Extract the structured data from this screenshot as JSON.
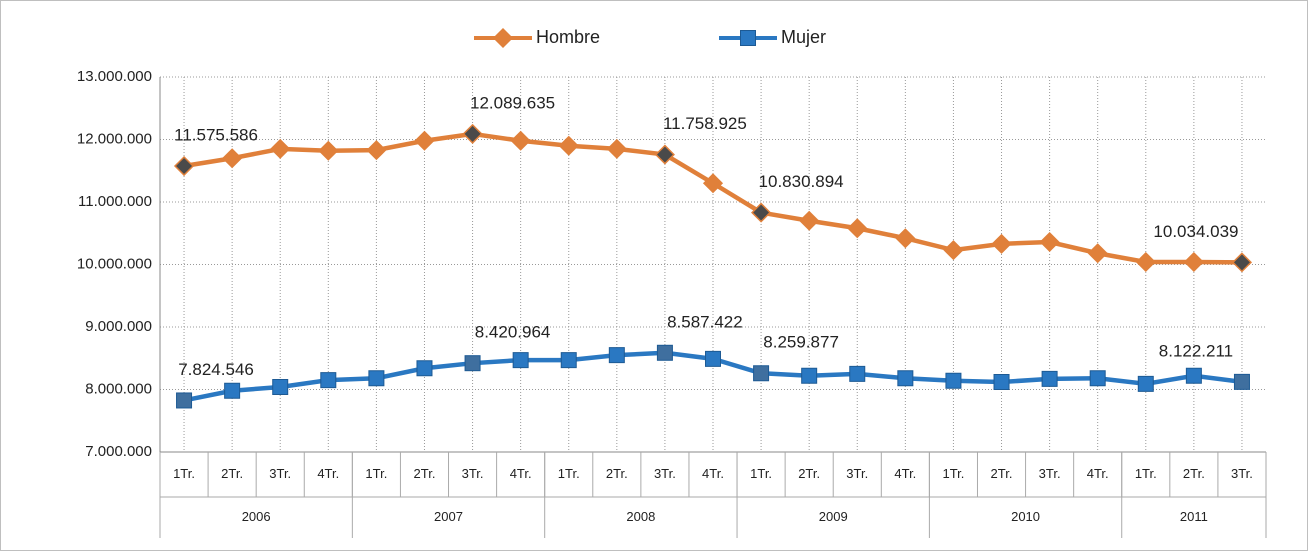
{
  "chart_data": {
    "type": "line",
    "year_groups": [
      {
        "name": "2006",
        "quarters": [
          "1Tr.",
          "2Tr.",
          "3Tr.",
          "4Tr."
        ]
      },
      {
        "name": "2007",
        "quarters": [
          "1Tr.",
          "2Tr.",
          "3Tr.",
          "4Tr."
        ]
      },
      {
        "name": "2008",
        "quarters": [
          "1Tr.",
          "2Tr.",
          "3Tr.",
          "4Tr."
        ]
      },
      {
        "name": "2009",
        "quarters": [
          "1Tr.",
          "2Tr.",
          "3Tr.",
          "4Tr."
        ]
      },
      {
        "name": "2010",
        "quarters": [
          "1Tr.",
          "2Tr.",
          "3Tr.",
          "4Tr."
        ]
      },
      {
        "name": "2011",
        "quarters": [
          "1Tr.",
          "2Tr.",
          "3Tr."
        ]
      }
    ],
    "series": [
      {
        "name": "Hombre",
        "color": "#e0803a",
        "marker": "diamond",
        "values": [
          11575586,
          11700000,
          11850000,
          11820000,
          11830000,
          11980000,
          12089635,
          11980000,
          11900000,
          11850000,
          11758925,
          11300000,
          10830894,
          10700000,
          10580000,
          10420000,
          10230000,
          10330000,
          10360000,
          10180000,
          10040000,
          10040000,
          10034039
        ],
        "value_labels": [
          "11.575.586",
          null,
          null,
          null,
          null,
          null,
          "12.089.635",
          null,
          null,
          null,
          "11.758.925",
          null,
          "10.830.894",
          null,
          null,
          null,
          null,
          null,
          null,
          null,
          null,
          null,
          "10.034.039"
        ]
      },
      {
        "name": "Mujer",
        "color": "#2a78c2",
        "marker": "square",
        "values": [
          7824546,
          7980000,
          8040000,
          8150000,
          8180000,
          8340000,
          8420964,
          8470000,
          8470000,
          8550000,
          8587422,
          8490000,
          8259877,
          8220000,
          8250000,
          8180000,
          8140000,
          8120000,
          8170000,
          8180000,
          8090000,
          8220000,
          8122211
        ],
        "value_labels": [
          "7.824.546",
          null,
          null,
          null,
          null,
          null,
          "8.420.964",
          null,
          null,
          null,
          "8.587.422",
          null,
          "8.259.877",
          null,
          null,
          null,
          null,
          null,
          null,
          null,
          null,
          null,
          "8.122.211"
        ]
      }
    ],
    "ylim": [
      7000000,
      13000000
    ],
    "yticks": [
      {
        "value": 7000000,
        "label": "7.000.000"
      },
      {
        "value": 8000000,
        "label": "8.000.000"
      },
      {
        "value": 9000000,
        "label": "9.000.000"
      },
      {
        "value": 10000000,
        "label": "10.000.000"
      },
      {
        "value": 11000000,
        "label": "11.000.000"
      },
      {
        "value": 12000000,
        "label": "12.000.000"
      },
      {
        "value": 13000000,
        "label": "13.000.000"
      }
    ],
    "grid": true,
    "legend": "top"
  }
}
